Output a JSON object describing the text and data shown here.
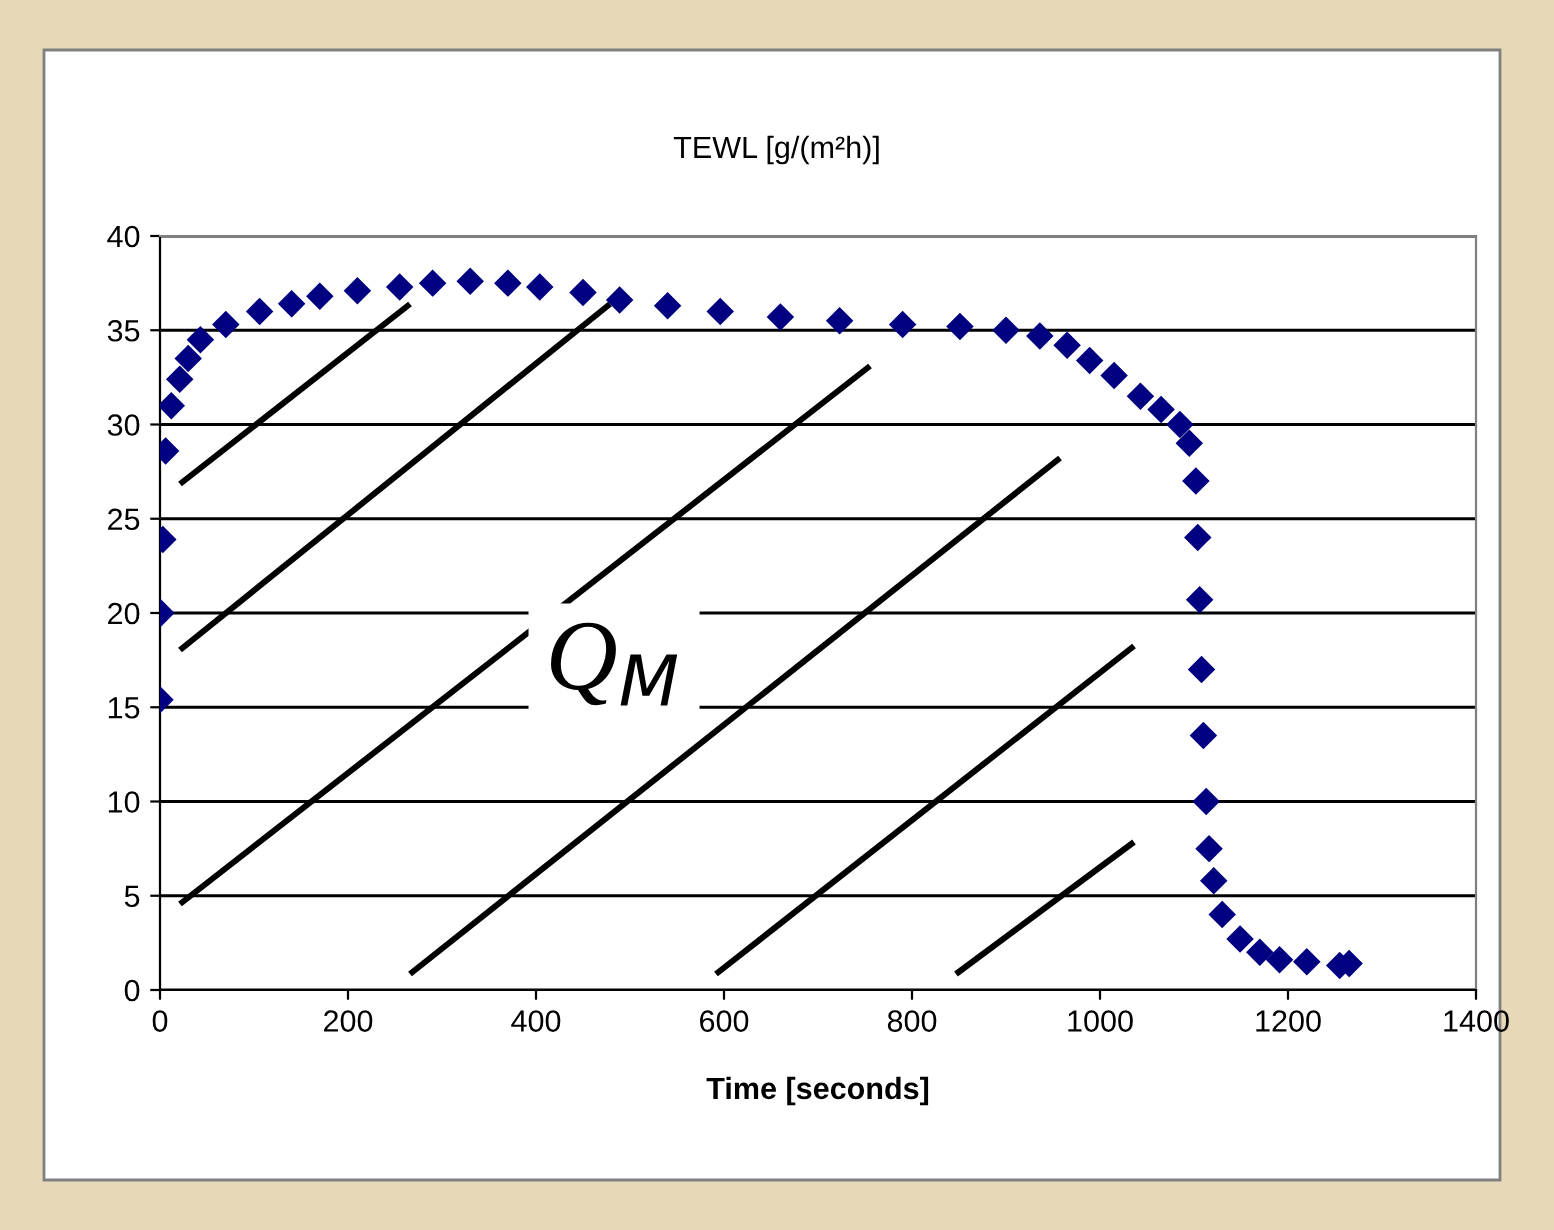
{
  "chart_data": {
    "type": "scatter",
    "title": "TEWL [g/(m²h)]",
    "xlabel": "Time [seconds]",
    "series": [
      {
        "color": "#000080",
        "x": [
          0,
          1,
          3,
          6,
          12,
          21,
          30,
          43,
          70,
          106,
          140,
          170,
          210,
          255,
          290,
          330,
          370,
          404,
          450,
          489,
          540,
          596,
          660,
          723,
          790,
          851,
          900,
          936,
          965,
          989,
          1015,
          1043,
          1065,
          1085,
          1095,
          1102,
          1104,
          1106,
          1108,
          1110,
          1113,
          1116,
          1121,
          1130,
          1149,
          1170,
          1191,
          1220,
          1255,
          1265
        ],
        "values": [
          15.4,
          20,
          23.9,
          28.6,
          31,
          32.4,
          33.5,
          34.5,
          35.3,
          36,
          36.4,
          36.8,
          37.1,
          37.3,
          37.5,
          37.6,
          37.5,
          37.3,
          37,
          36.6,
          36.3,
          36,
          35.7,
          35.5,
          35.3,
          35.2,
          35,
          34.7,
          34.2,
          33.4,
          32.6,
          31.5,
          30.8,
          30,
          29,
          27,
          24,
          20.7,
          17,
          13.5,
          10,
          7.5,
          5.8,
          4,
          2.7,
          2,
          1.6,
          1.5,
          1.3,
          1.4
        ]
      }
    ],
    "annotations": [
      "Q$_{M}$"
    ],
    "xlim": [
      0,
      1400
    ],
    "xticks": [
      0,
      200,
      400,
      600,
      800,
      1000,
      1200,
      1400
    ],
    "ylim": [
      0,
      40
    ],
    "yticks": [
      0,
      5,
      10,
      15,
      20,
      25,
      30,
      35,
      40
    ],
    "grid": "y",
    "marker": "diamond"
  }
}
